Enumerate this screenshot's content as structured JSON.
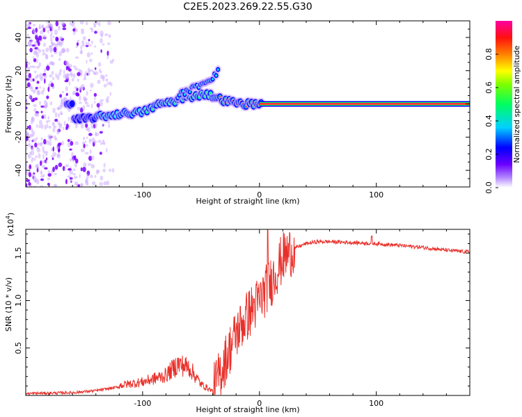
{
  "title": "C2E5.2023.269.22.55.G30",
  "chart_data": [
    {
      "type": "heatmap",
      "xlabel": "Height of straight line (km)",
      "ylabel": "Frequency (Hz)",
      "xlim": [
        -200,
        180
      ],
      "ylim": [
        -50,
        50
      ],
      "x_ticks": [
        -100,
        0,
        100
      ],
      "y_ticks": [
        -40,
        -20,
        0,
        20,
        40
      ],
      "colorbar": {
        "label": "Normalized spectral amplitude",
        "range": [
          0,
          1
        ],
        "ticks": [
          "0.0",
          "0.2",
          "0.4",
          "0.6",
          "0.8"
        ],
        "colors": [
          "#ffffff",
          "#7a00ff",
          "#0000ff",
          "#00ffff",
          "#00ff00",
          "#ffff00",
          "#ff8000",
          "#ff0000",
          "#ff00a0"
        ]
      },
      "ridge": {
        "description_points": [
          [
            -160,
            -10
          ],
          [
            -140,
            -8
          ],
          [
            -120,
            -6
          ],
          [
            -100,
            -5
          ],
          [
            -85,
            0
          ],
          [
            -70,
            2
          ],
          [
            -55,
            5
          ],
          [
            -45,
            6
          ],
          [
            -30,
            2
          ],
          [
            -15,
            0
          ],
          [
            0,
            0
          ],
          [
            180,
            0
          ]
        ],
        "secondary_branch": [
          [
            -70,
            5
          ],
          [
            -55,
            10
          ],
          [
            -40,
            16
          ],
          [
            -35,
            20
          ]
        ]
      }
    },
    {
      "type": "line",
      "xlabel": "Height of straight line (km)",
      "ylabel": "SNR (10 * v/v)",
      "exponent_label": "(x10",
      "exponent_power": "4",
      "exponent_close": ")",
      "xlim": [
        -200,
        180
      ],
      "ylim": [
        0,
        1.75
      ],
      "x_ticks": [
        -100,
        0,
        100
      ],
      "y_ticks": [
        0.5,
        1.0,
        1.5
      ],
      "y_tick_labels": [
        "0.5",
        "1.0",
        "1.5"
      ],
      "color": "#e8302a",
      "series": [
        {
          "x": [
            -200,
            -160,
            -140,
            -120,
            -100,
            -80,
            -70,
            -60,
            -50,
            -40,
            -30,
            -20,
            -10,
            0,
            10,
            20,
            30,
            40,
            50,
            60,
            80,
            100,
            120,
            140,
            160,
            180
          ],
          "values": [
            0.02,
            0.03,
            0.05,
            0.09,
            0.12,
            0.18,
            0.28,
            0.25,
            0.1,
            0.04,
            0.35,
            0.65,
            0.85,
            1.0,
            1.2,
            1.45,
            1.55,
            1.6,
            1.62,
            1.62,
            1.61,
            1.6,
            1.58,
            1.56,
            1.53,
            1.51
          ]
        }
      ]
    }
  ]
}
